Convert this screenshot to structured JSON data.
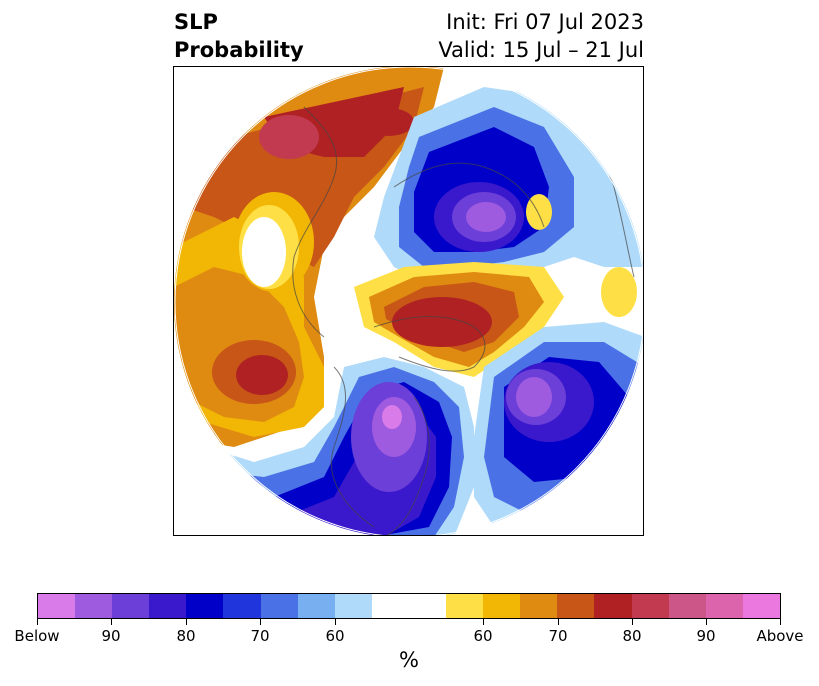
{
  "title": {
    "left_line1": "SLP",
    "left_line2": "Probability",
    "right_line1": "Init: Fri 07 Jul 2023",
    "right_line2": "Valid: 15 Jul – 21 Jul"
  },
  "colorbar": {
    "colors": [
      "#d97be8",
      "#9e5be0",
      "#6c3fd8",
      "#3a18cc",
      "#0000c8",
      "#2035dc",
      "#4a72e6",
      "#78aff0",
      "#afdafa",
      "#ffffff",
      "#ffffff",
      "#fee046",
      "#f2b705",
      "#df8a10",
      "#c75617",
      "#b02123",
      "#c23a4f",
      "#cc5687",
      "#dc64ad",
      "#eb78de"
    ],
    "tick_labels": [
      "Below",
      "90",
      "80",
      "70",
      "60",
      "60",
      "70",
      "80",
      "90",
      "Above"
    ],
    "unit": "%"
  },
  "map": {
    "projection": "north-polar-stereographic",
    "variable": "sea-level-pressure-probability"
  }
}
